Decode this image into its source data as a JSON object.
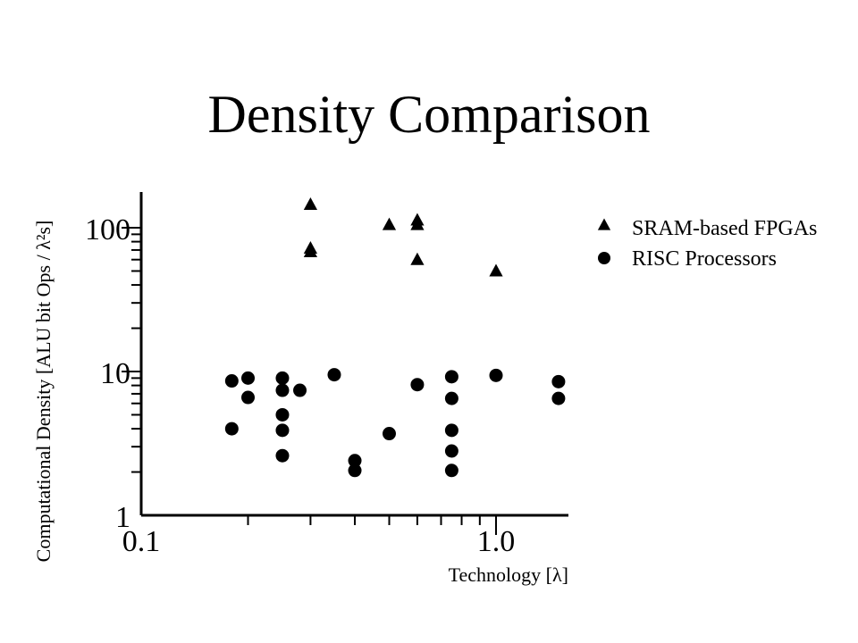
{
  "slide": {
    "title": "Density Comparison"
  },
  "chart_data": {
    "type": "scatter",
    "title": "Density Comparison",
    "xlabel": "Technology [λ]",
    "ylabel": "Computational Density [ALU bit Ops / λ²s]",
    "xscale": "log",
    "yscale": "log",
    "xlim": [
      0.1,
      1.5
    ],
    "ylim": [
      1,
      180
    ],
    "xticklabels": [
      {
        "value": 0.1,
        "label": "0.1"
      },
      {
        "value": 1.0,
        "label": "1.0"
      }
    ],
    "yticklabels": [
      {
        "value": 1,
        "label": "1"
      },
      {
        "value": 10,
        "label": "10"
      },
      {
        "value": 100,
        "label": "100"
      }
    ],
    "grid": false,
    "legend_position": "right",
    "series": [
      {
        "name": "SRAM-based FPGAs",
        "marker": "triangle",
        "color": "#000000",
        "points": [
          {
            "x": 0.3,
            "y": 145
          },
          {
            "x": 0.3,
            "y": 72
          },
          {
            "x": 0.3,
            "y": 68
          },
          {
            "x": 0.5,
            "y": 105
          },
          {
            "x": 0.6,
            "y": 113
          },
          {
            "x": 0.6,
            "y": 105
          },
          {
            "x": 0.6,
            "y": 60
          },
          {
            "x": 1.0,
            "y": 50
          }
        ]
      },
      {
        "name": "RISC Processors",
        "marker": "circle",
        "color": "#000000",
        "points": [
          {
            "x": 0.18,
            "y": 8.6
          },
          {
            "x": 0.18,
            "y": 4.0
          },
          {
            "x": 0.2,
            "y": 9.0
          },
          {
            "x": 0.2,
            "y": 6.6
          },
          {
            "x": 0.25,
            "y": 9.0
          },
          {
            "x": 0.25,
            "y": 7.4
          },
          {
            "x": 0.25,
            "y": 5.0
          },
          {
            "x": 0.25,
            "y": 3.9
          },
          {
            "x": 0.25,
            "y": 2.6
          },
          {
            "x": 0.28,
            "y": 7.4
          },
          {
            "x": 0.35,
            "y": 9.5
          },
          {
            "x": 0.4,
            "y": 2.4
          },
          {
            "x": 0.4,
            "y": 2.05
          },
          {
            "x": 0.5,
            "y": 3.7
          },
          {
            "x": 0.6,
            "y": 8.1
          },
          {
            "x": 0.75,
            "y": 9.2
          },
          {
            "x": 0.75,
            "y": 6.5
          },
          {
            "x": 0.75,
            "y": 3.9
          },
          {
            "x": 0.75,
            "y": 2.8
          },
          {
            "x": 0.75,
            "y": 2.05
          },
          {
            "x": 1.0,
            "y": 9.4
          },
          {
            "x": 1.5,
            "y": 8.5
          },
          {
            "x": 1.5,
            "y": 6.5
          }
        ]
      }
    ]
  }
}
